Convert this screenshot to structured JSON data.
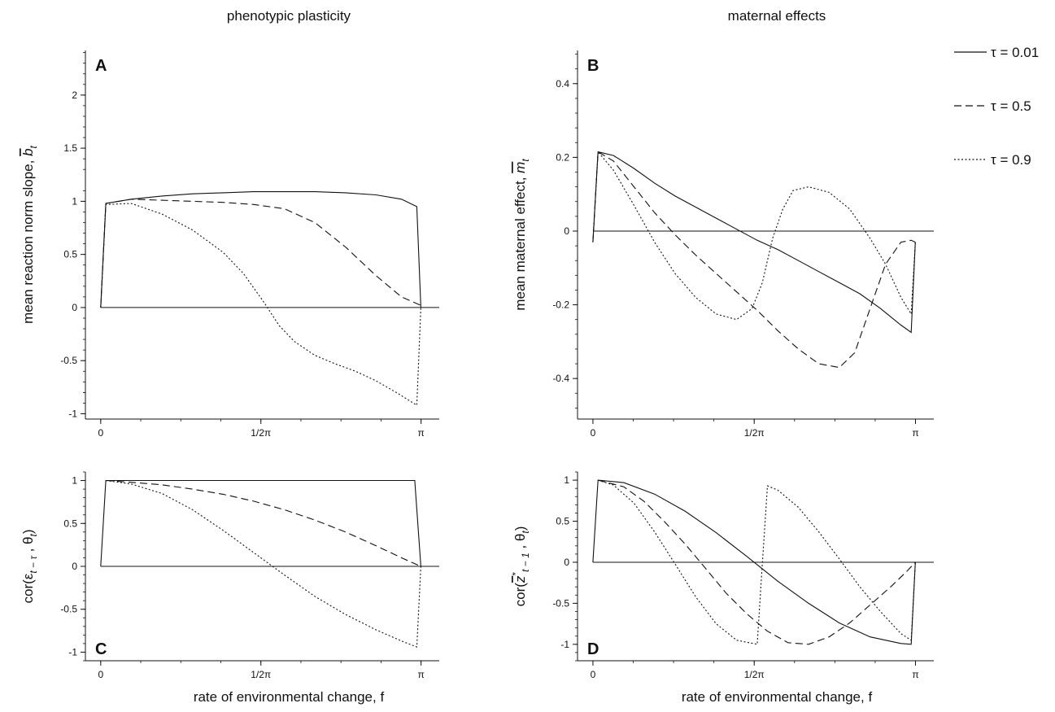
{
  "figure": {
    "column_titles": [
      "phenotypic plasticity",
      "maternal effects"
    ],
    "x_axis_title": "rate of environmental change, f"
  },
  "legend": {
    "entries": [
      {
        "label": "τ = 0.01",
        "style": "solid"
      },
      {
        "label": "τ = 0.5",
        "style": "dashed"
      },
      {
        "label": "τ = 0.9",
        "style": "dotted"
      }
    ]
  },
  "chart_data": [
    {
      "panel": "A",
      "type": "line",
      "ylabel": "mean reaction norm slope, b̄t",
      "x_ticks": [
        {
          "value": 0,
          "label": "0"
        },
        {
          "value": 1.5708,
          "label": "1/2π"
        },
        {
          "value": 3.1416,
          "label": "π"
        }
      ],
      "y_ticks": [
        -1,
        -0.5,
        0,
        0.5,
        1,
        1.5,
        2
      ],
      "xlim": [
        -0.15,
        3.32
      ],
      "ylim": [
        -1.05,
        2.42
      ],
      "zero_line": true,
      "series": [
        {
          "name": "τ = 0.01",
          "style": "solid",
          "x": [
            0,
            0.05,
            0.3,
            0.6,
            0.9,
            1.2,
            1.5,
            1.8,
            2.1,
            2.4,
            2.7,
            2.95,
            3.1,
            3.14
          ],
          "y": [
            0,
            0.98,
            1.02,
            1.05,
            1.07,
            1.08,
            1.09,
            1.09,
            1.09,
            1.08,
            1.06,
            1.02,
            0.95,
            0
          ]
        },
        {
          "name": "τ = 0.5",
          "style": "dashed",
          "x": [
            0,
            0.05,
            0.3,
            0.6,
            0.9,
            1.2,
            1.5,
            1.8,
            2.1,
            2.4,
            2.7,
            2.95,
            3.14
          ],
          "y": [
            0,
            0.98,
            1.02,
            1.01,
            1.0,
            0.99,
            0.97,
            0.93,
            0.8,
            0.57,
            0.3,
            0.1,
            0.02
          ]
        },
        {
          "name": "τ = 0.9",
          "style": "dotted",
          "x": [
            0,
            0.05,
            0.3,
            0.6,
            0.9,
            1.2,
            1.4,
            1.6,
            1.75,
            1.9,
            2.1,
            2.3,
            2.5,
            2.7,
            2.9,
            3.1,
            3.14
          ],
          "y": [
            0,
            0.97,
            0.98,
            0.88,
            0.73,
            0.52,
            0.32,
            0.05,
            -0.17,
            -0.32,
            -0.45,
            -0.53,
            -0.6,
            -0.69,
            -0.8,
            -0.92,
            0
          ]
        }
      ]
    },
    {
      "panel": "B",
      "type": "line",
      "ylabel": "mean maternal effect, m̄t",
      "x_ticks": [
        {
          "value": 0,
          "label": "0"
        },
        {
          "value": 1.5708,
          "label": "1/2π"
        },
        {
          "value": 3.1416,
          "label": "π"
        }
      ],
      "y_ticks": [
        -0.4,
        -0.2,
        0,
        0.2,
        0.4
      ],
      "xlim": [
        -0.15,
        3.32
      ],
      "ylim": [
        -0.51,
        0.49
      ],
      "zero_line": true,
      "series": [
        {
          "name": "τ = 0.01",
          "style": "solid",
          "x": [
            0,
            0.05,
            0.2,
            0.4,
            0.6,
            0.8,
            1.0,
            1.2,
            1.4,
            1.6,
            1.8,
            2.0,
            2.2,
            2.4,
            2.6,
            2.8,
            3.0,
            3.1,
            3.14
          ],
          "y": [
            -0.03,
            0.215,
            0.205,
            0.17,
            0.13,
            0.095,
            0.065,
            0.035,
            0.005,
            -0.025,
            -0.05,
            -0.08,
            -0.11,
            -0.14,
            -0.17,
            -0.21,
            -0.255,
            -0.275,
            -0.03
          ]
        },
        {
          "name": "τ = 0.5",
          "style": "dashed",
          "x": [
            0,
            0.05,
            0.2,
            0.4,
            0.6,
            0.8,
            1.0,
            1.2,
            1.4,
            1.6,
            1.8,
            2.0,
            2.2,
            2.4,
            2.55,
            2.7,
            2.85,
            3.0,
            3.1,
            3.14
          ],
          "y": [
            -0.03,
            0.215,
            0.19,
            0.12,
            0.05,
            -0.01,
            -0.065,
            -0.115,
            -0.165,
            -0.215,
            -0.27,
            -0.32,
            -0.36,
            -0.37,
            -0.33,
            -0.21,
            -0.09,
            -0.03,
            -0.025,
            -0.03
          ]
        },
        {
          "name": "τ = 0.9",
          "style": "dotted",
          "x": [
            0,
            0.05,
            0.2,
            0.4,
            0.6,
            0.8,
            1.0,
            1.2,
            1.4,
            1.55,
            1.65,
            1.75,
            1.85,
            1.95,
            2.1,
            2.3,
            2.5,
            2.7,
            2.85,
            3.0,
            3.1,
            3.14
          ],
          "y": [
            -0.03,
            0.215,
            0.165,
            0.07,
            -0.03,
            -0.115,
            -0.18,
            -0.225,
            -0.24,
            -0.21,
            -0.14,
            -0.02,
            0.06,
            0.11,
            0.12,
            0.105,
            0.06,
            -0.02,
            -0.09,
            -0.18,
            -0.225,
            -0.03
          ]
        }
      ]
    },
    {
      "panel": "C",
      "type": "line",
      "ylabel": "cor(εt−τ , θt)",
      "x_ticks": [
        {
          "value": 0,
          "label": "0"
        },
        {
          "value": 1.5708,
          "label": "1/2π"
        },
        {
          "value": 3.1416,
          "label": "π"
        }
      ],
      "y_ticks": [
        -1,
        -0.5,
        0,
        0.5,
        1
      ],
      "xlim": [
        -0.15,
        3.32
      ],
      "ylim": [
        -1.1,
        1.1
      ],
      "zero_line": true,
      "series": [
        {
          "name": "τ = 0.01",
          "style": "solid",
          "x": [
            0,
            0.05,
            3.08,
            3.14
          ],
          "y": [
            0,
            1.0,
            1.0,
            0
          ]
        },
        {
          "name": "τ = 0.5",
          "style": "dashed",
          "x": [
            0.05,
            0.3,
            0.6,
            0.9,
            1.2,
            1.5,
            1.8,
            2.1,
            2.4,
            2.7,
            2.95,
            3.14
          ],
          "y": [
            1.0,
            0.98,
            0.95,
            0.9,
            0.84,
            0.76,
            0.66,
            0.54,
            0.4,
            0.24,
            0.1,
            0.0
          ]
        },
        {
          "name": "τ = 0.9",
          "style": "dotted",
          "x": [
            0.05,
            0.3,
            0.6,
            0.9,
            1.2,
            1.5,
            1.8,
            2.1,
            2.4,
            2.7,
            2.95,
            3.1,
            3.14
          ],
          "y": [
            1.0,
            0.96,
            0.85,
            0.66,
            0.42,
            0.16,
            -0.1,
            -0.35,
            -0.56,
            -0.74,
            -0.87,
            -0.94,
            0
          ]
        }
      ]
    },
    {
      "panel": "D",
      "type": "line",
      "ylabel": "cor(z̄*t−1 , θt)",
      "x_ticks": [
        {
          "value": 0,
          "label": "0"
        },
        {
          "value": 1.5708,
          "label": "1/2π"
        },
        {
          "value": 3.1416,
          "label": "π"
        }
      ],
      "y_ticks": [
        -1,
        -0.5,
        0,
        0.5,
        1
      ],
      "xlim": [
        -0.15,
        3.32
      ],
      "ylim": [
        -1.2,
        1.1
      ],
      "zero_line": true,
      "series": [
        {
          "name": "τ = 0.01",
          "style": "solid",
          "x": [
            0,
            0.05,
            0.3,
            0.6,
            0.9,
            1.2,
            1.5,
            1.8,
            2.1,
            2.4,
            2.7,
            3.0,
            3.1,
            3.14
          ],
          "y": [
            0,
            1.0,
            0.97,
            0.83,
            0.62,
            0.36,
            0.07,
            -0.23,
            -0.5,
            -0.74,
            -0.91,
            -0.99,
            -1.0,
            0
          ]
        },
        {
          "name": "τ = 0.5",
          "style": "dashed",
          "x": [
            0.05,
            0.3,
            0.5,
            0.7,
            0.9,
            1.1,
            1.3,
            1.5,
            1.7,
            1.9,
            2.1,
            2.3,
            2.5,
            2.7,
            2.9,
            3.05,
            3.14
          ],
          "y": [
            1.0,
            0.92,
            0.74,
            0.49,
            0.22,
            -0.08,
            -0.38,
            -0.63,
            -0.84,
            -0.98,
            -1.0,
            -0.91,
            -0.74,
            -0.52,
            -0.3,
            -0.12,
            0
          ]
        },
        {
          "name": "τ = 0.9",
          "style": "dotted",
          "x": [
            0.05,
            0.2,
            0.4,
            0.6,
            0.8,
            1.0,
            1.2,
            1.4,
            1.6,
            1.65,
            1.7,
            1.8,
            2.0,
            2.2,
            2.4,
            2.6,
            2.8,
            3.0,
            3.1,
            3.14
          ],
          "y": [
            1.0,
            0.94,
            0.72,
            0.37,
            -0.02,
            -0.42,
            -0.75,
            -0.95,
            -1.0,
            -0.02,
            0.93,
            0.88,
            0.67,
            0.37,
            0.04,
            -0.3,
            -0.6,
            -0.87,
            -0.95,
            0
          ]
        }
      ]
    }
  ]
}
